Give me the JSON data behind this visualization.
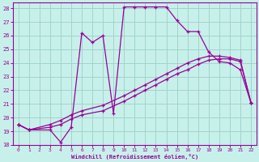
{
  "xlabel": "Windchill (Refroidissement éolien,°C)",
  "background_color": "#c8f0ea",
  "grid_color": "#a0d4cc",
  "line_color": "#990099",
  "xlim": [
    -0.5,
    22.5
  ],
  "ylim": [
    18,
    28.4
  ],
  "xticks": [
    0,
    1,
    2,
    3,
    4,
    5,
    6,
    7,
    8,
    9,
    10,
    11,
    12,
    13,
    14,
    15,
    16,
    17,
    18,
    19,
    20,
    21,
    22
  ],
  "yticks": [
    18,
    19,
    20,
    21,
    22,
    23,
    24,
    25,
    26,
    27,
    28
  ],
  "series1_x": [
    0,
    1,
    3,
    4,
    5,
    6,
    7,
    8,
    9,
    10,
    11,
    12,
    13,
    14,
    15,
    16,
    17,
    18,
    19,
    20,
    21,
    22
  ],
  "series1_y": [
    19.5,
    19.1,
    19.1,
    18.2,
    19.3,
    26.2,
    25.5,
    26.0,
    20.3,
    28.1,
    28.1,
    28.1,
    28.1,
    28.1,
    27.1,
    26.3,
    26.3,
    24.8,
    24.1,
    24.0,
    23.5,
    21.1
  ],
  "series2_x": [
    0,
    1,
    3,
    4,
    5,
    6,
    8,
    10,
    11,
    12,
    13,
    14,
    15,
    16,
    17,
    18,
    19,
    20,
    21,
    22
  ],
  "series2_y": [
    19.5,
    19.1,
    19.3,
    19.5,
    19.9,
    20.2,
    20.5,
    21.2,
    21.6,
    22.0,
    22.4,
    22.8,
    23.2,
    23.5,
    23.9,
    24.2,
    24.3,
    24.3,
    24.1,
    21.1
  ],
  "series3_x": [
    0,
    1,
    3,
    4,
    5,
    6,
    8,
    10,
    11,
    12,
    13,
    14,
    15,
    16,
    17,
    18,
    19,
    20,
    21,
    22
  ],
  "series3_y": [
    19.5,
    19.1,
    19.5,
    19.8,
    20.2,
    20.5,
    20.9,
    21.6,
    22.0,
    22.4,
    22.8,
    23.2,
    23.6,
    24.0,
    24.3,
    24.5,
    24.5,
    24.4,
    24.2,
    21.1
  ]
}
